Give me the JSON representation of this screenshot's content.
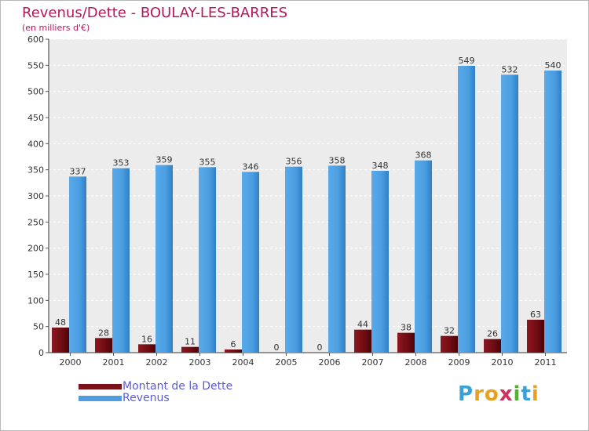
{
  "header": {
    "title": "Revenus/Dette - BOULAY-LES-BARRES",
    "subtitle": "(en milliers d'€)"
  },
  "chart_data": {
    "type": "bar",
    "categories": [
      "2000",
      "2001",
      "2002",
      "2003",
      "2004",
      "2005",
      "2006",
      "2007",
      "2008",
      "2009",
      "2010",
      "2011"
    ],
    "series": [
      {
        "name": "Montant de la Dette",
        "color": "#7a1018",
        "values": [
          48,
          28,
          16,
          11,
          6,
          0,
          0,
          44,
          38,
          32,
          26,
          63
        ]
      },
      {
        "name": "Revenus",
        "color": "#4f9fe0",
        "values": [
          337,
          353,
          359,
          355,
          346,
          356,
          358,
          348,
          368,
          549,
          532,
          540
        ]
      }
    ],
    "title": "Revenus/Dette - BOULAY-LES-BARRES",
    "ylabel": "(en milliers d'€)",
    "ylim": [
      0,
      600
    ],
    "yticks": [
      0,
      50,
      100,
      150,
      200,
      250,
      300,
      350,
      400,
      450,
      500,
      550,
      600
    ],
    "grid": true,
    "legend": "bottom-left"
  },
  "legend": {
    "items": [
      {
        "label": "Montant de la Dette",
        "color": "#7a1018"
      },
      {
        "label": "Revenus",
        "color": "#4f9fe0"
      }
    ]
  },
  "logo": {
    "letters": [
      "P",
      "r",
      "o",
      "x",
      "i",
      "t",
      "i"
    ],
    "colors": [
      "#3aa0d8",
      "#e8a020",
      "#e8a020",
      "#d03060",
      "#50b030",
      "#3aa0d8",
      "#e8a020"
    ]
  }
}
